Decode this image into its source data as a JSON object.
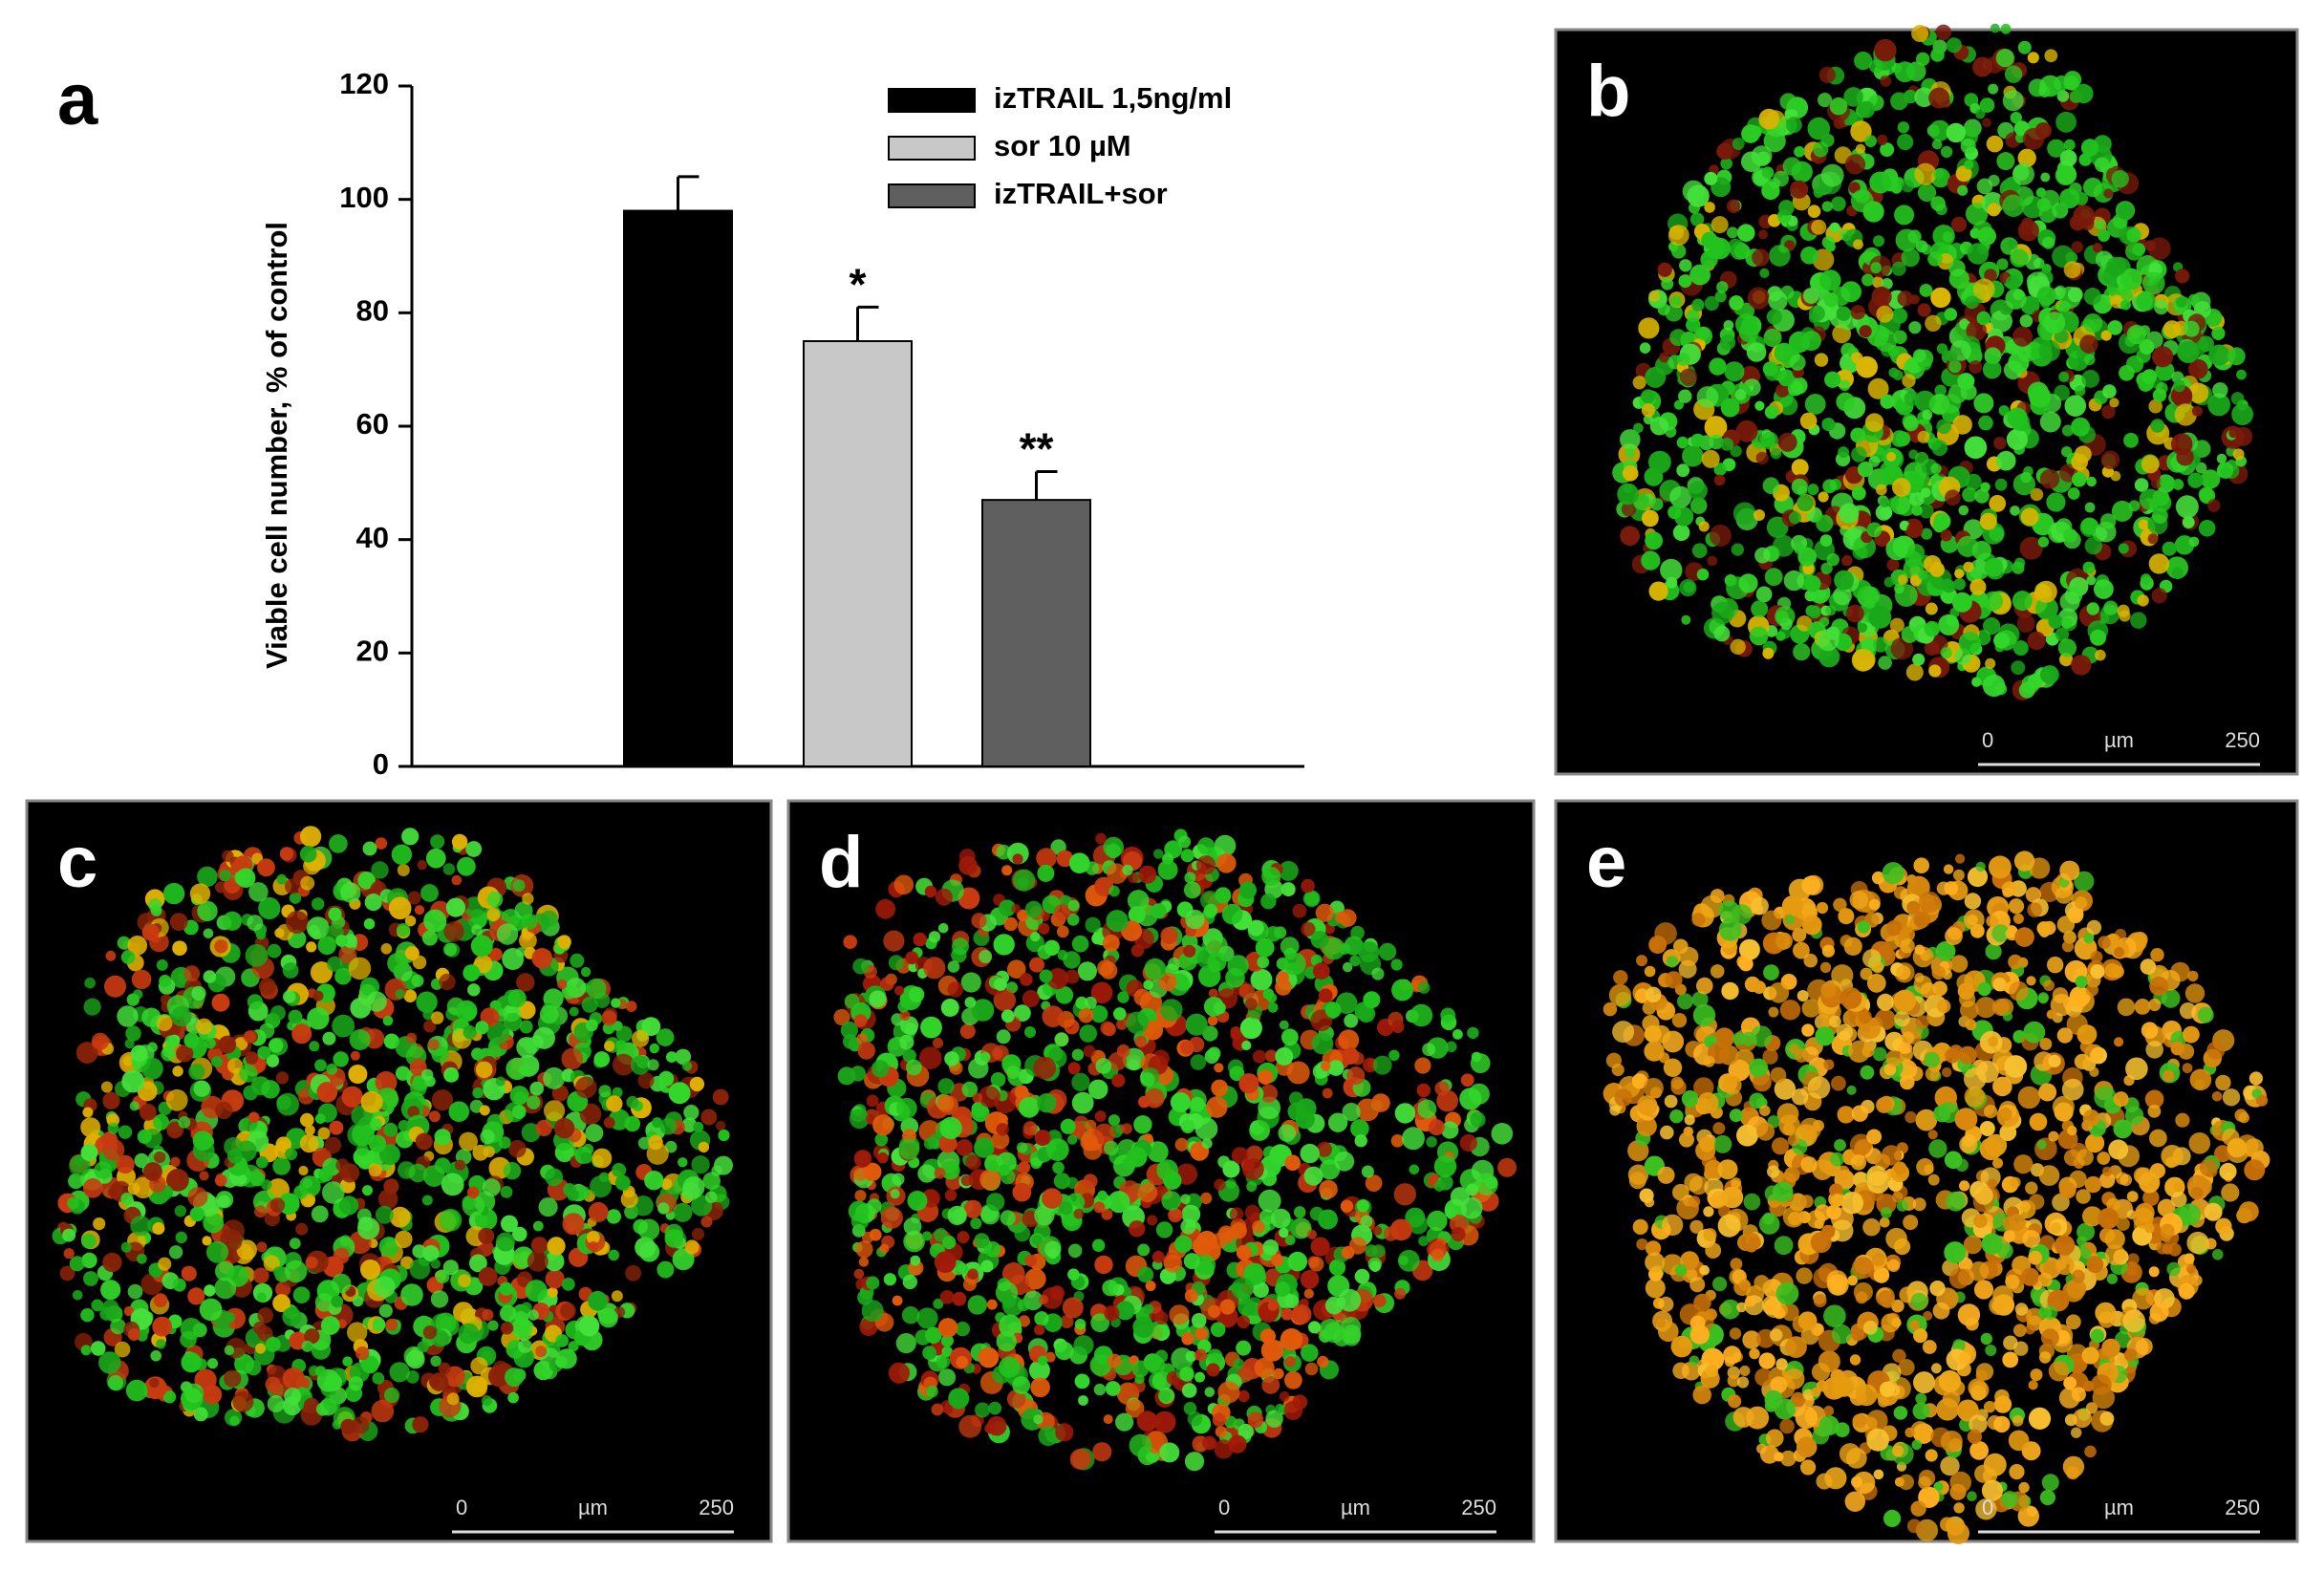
{
  "chart_data": {
    "type": "bar",
    "panel_label": "a",
    "ylabel": "Viable cell number, % of control",
    "ylim": [
      0,
      120
    ],
    "yticks": [
      0,
      20,
      40,
      60,
      80,
      100,
      120
    ],
    "categories": [
      null
    ],
    "series": [
      {
        "name": "izTRAIL 1,5ng/ml",
        "color": "#000000",
        "values": [
          98
        ],
        "errors": [
          6
        ]
      },
      {
        "name": "sor 10 µM",
        "color": "#c8c8c8",
        "values": [
          75
        ],
        "errors": [
          6
        ],
        "annotation": "*"
      },
      {
        "name": "izTRAIL+sor",
        "color": "#5f5f5f",
        "values": [
          47
        ],
        "errors": [
          5
        ],
        "annotation": "**"
      }
    ]
  },
  "panels": [
    {
      "label": "b",
      "scale": {
        "start": "0",
        "unit": "µm",
        "end": "250"
      }
    },
    {
      "label": "c",
      "scale": {
        "start": "0",
        "unit": "µm",
        "end": "250"
      }
    },
    {
      "label": "d",
      "scale": {
        "start": "0",
        "unit": "µm",
        "end": "250"
      }
    },
    {
      "label": "e",
      "scale": {
        "start": "0",
        "unit": "µm",
        "end": "250"
      }
    }
  ]
}
